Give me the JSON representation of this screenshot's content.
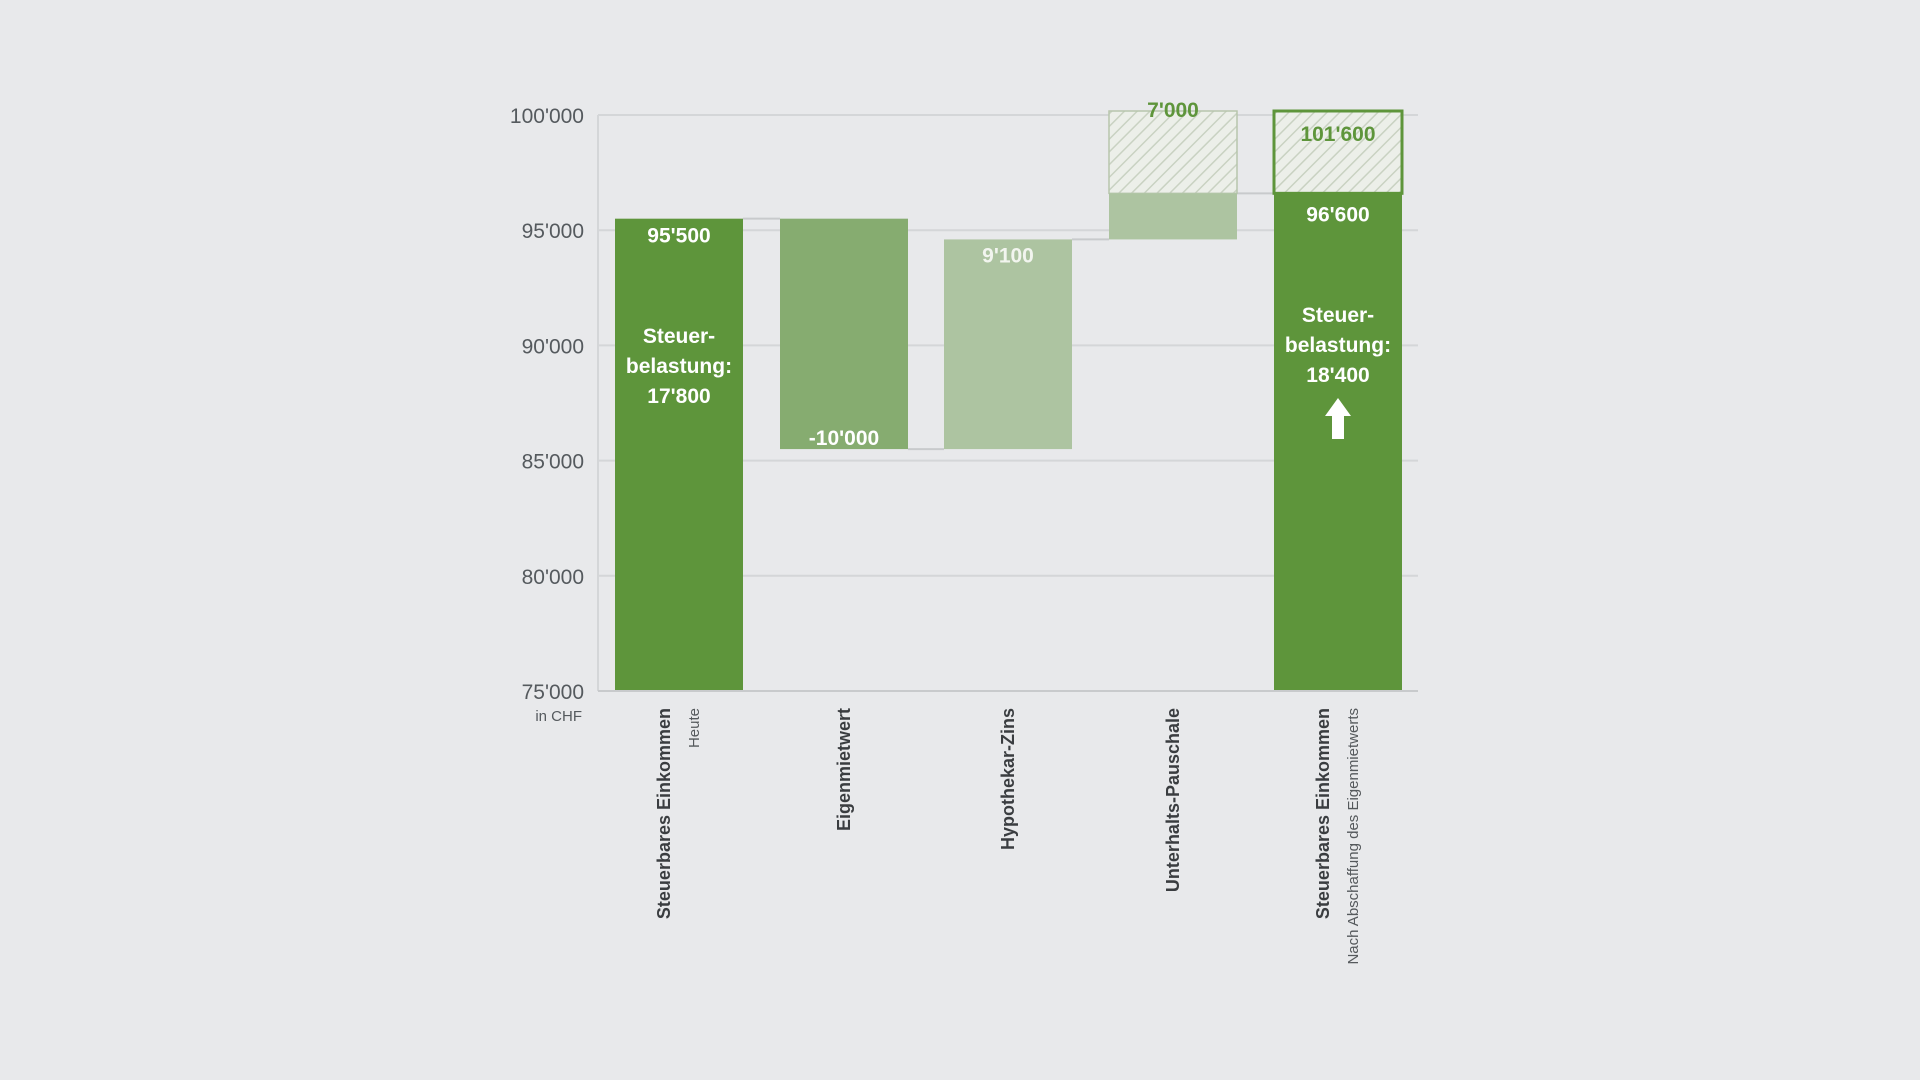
{
  "chart_data": {
    "type": "waterfall",
    "unit_label": "in CHF",
    "ylim": [
      75000,
      100000
    ],
    "yticks": [
      {
        "value": 100000,
        "label": "100'000"
      },
      {
        "value": 95000,
        "label": "95'000"
      },
      {
        "value": 90000,
        "label": "90'000"
      },
      {
        "value": 85000,
        "label": "85'000"
      },
      {
        "value": 80000,
        "label": "80'000"
      },
      {
        "value": 75000,
        "label": "75'000"
      }
    ],
    "grid": true,
    "bars": [
      {
        "category": "Steuerbares Einkommen",
        "subcategory": "Heute",
        "start": 75000,
        "end": 95500,
        "value_label": "95'500",
        "color": "#5e953b",
        "annotation": [
          "Steuer-",
          "belastung:",
          "17'800"
        ]
      },
      {
        "category": "Eigenmietwert",
        "start": 85500,
        "end": 95500,
        "value_label": "-10'000",
        "color": "#86ac70"
      },
      {
        "category": "Hypothekar-Zins",
        "start": 85500,
        "end": 94600,
        "value_label": "9'100",
        "color": "#adc4a1"
      },
      {
        "category": "Unterhalts-Pauschale",
        "start": 94600,
        "end": 96600,
        "value_label": "7'000",
        "color": "#adc4a1",
        "hatched_top": 101600
      },
      {
        "category": "Steuerbares Einkommen",
        "subcategory": "Nach Abschaffung des Eigenmietwerts",
        "start": 75000,
        "end": 96600,
        "value_label": "96'600",
        "color": "#5e953b",
        "hatched_top": 101600,
        "hatched_label": "101'600",
        "annotation": [
          "Steuer-",
          "belastung:",
          "18'400"
        ],
        "arrow": "up"
      }
    ]
  }
}
